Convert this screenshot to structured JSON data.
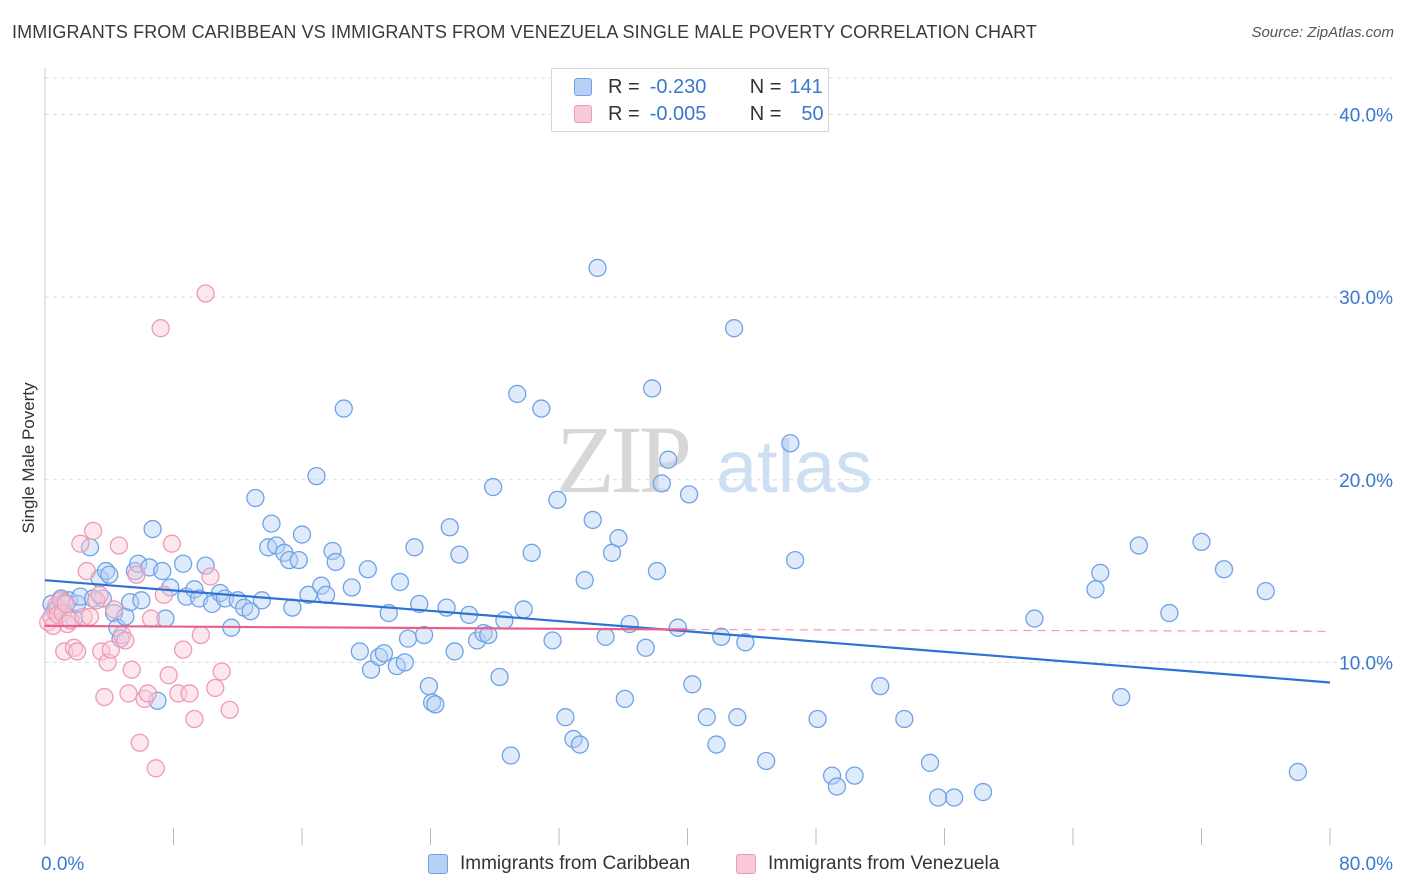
{
  "title": "IMMIGRANTS FROM CARIBBEAN VS IMMIGRANTS FROM VENEZUELA SINGLE MALE POVERTY CORRELATION CHART",
  "source": "Source: ZipAtlas.com",
  "watermark": {
    "zip": "ZIP",
    "atlas": "atlas"
  },
  "colors": {
    "caribbean": "#6fa3e8",
    "caribbean_fill": "#b7d0f3",
    "caribbean_line": "#2e72d2",
    "venezuela": "#ef9ab6",
    "venezuela_fill": "#f8c9d8",
    "venezuela_line": "#e8608c",
    "axis_text": "#3a78d0",
    "grid": "#dcdcdc"
  },
  "legend": {
    "caribbean": {
      "r_label": "R =",
      "r_value": "-0.230",
      "n_label": "N =",
      "n_value": "141"
    },
    "venezuela": {
      "r_label": "R =",
      "r_value": "-0.005",
      "n_label": "N =",
      "n_value": "50"
    }
  },
  "bottom_legend": {
    "caribbean": "Immigrants from Caribbean",
    "venezuela": "Immigrants from Venezuela"
  },
  "chart_data": {
    "type": "scatter",
    "title": "IMMIGRANTS FROM CARIBBEAN VS IMMIGRANTS FROM VENEZUELA SINGLE MALE POVERTY CORRELATION CHART",
    "xlabel": "",
    "ylabel": "Single Male Poverty",
    "xlim": [
      0,
      80
    ],
    "ylim": [
      0,
      42
    ],
    "x_tick_labels": [
      "0.0%",
      "80.0%"
    ],
    "y_ticks": [
      10,
      20,
      30,
      40
    ],
    "y_tick_labels": [
      "10.0%",
      "20.0%",
      "30.0%",
      "40.0%"
    ],
    "grid": true,
    "legend_position": "top-center",
    "series": [
      {
        "name": "Immigrants from Caribbean",
        "trend": {
          "x": [
            0,
            80
          ],
          "y": [
            14.5,
            8.9
          ]
        },
        "points": [
          [
            0.4,
            13.2
          ],
          [
            0.6,
            12.8
          ],
          [
            0.8,
            13.0
          ],
          [
            1.0,
            13.5
          ],
          [
            1.2,
            13.3
          ],
          [
            1.5,
            13.4
          ],
          [
            1.8,
            12.4
          ],
          [
            2.0,
            13.2
          ],
          [
            2.2,
            13.6
          ],
          [
            2.8,
            16.3
          ],
          [
            3.0,
            13.5
          ],
          [
            3.4,
            14.6
          ],
          [
            3.6,
            13.5
          ],
          [
            3.8,
            15.0
          ],
          [
            4.0,
            14.8
          ],
          [
            4.3,
            12.7
          ],
          [
            4.5,
            11.9
          ],
          [
            4.7,
            11.3
          ],
          [
            5.0,
            12.5
          ],
          [
            5.3,
            13.3
          ],
          [
            5.6,
            15.0
          ],
          [
            5.8,
            15.4
          ],
          [
            6.0,
            13.4
          ],
          [
            6.5,
            15.2
          ],
          [
            6.7,
            17.3
          ],
          [
            7.0,
            7.9
          ],
          [
            7.3,
            15.0
          ],
          [
            7.5,
            12.4
          ],
          [
            7.8,
            14.1
          ],
          [
            8.6,
            15.4
          ],
          [
            8.8,
            13.6
          ],
          [
            9.3,
            14.0
          ],
          [
            9.6,
            13.5
          ],
          [
            10.0,
            15.3
          ],
          [
            10.4,
            13.2
          ],
          [
            10.9,
            13.8
          ],
          [
            11.2,
            13.5
          ],
          [
            11.6,
            11.9
          ],
          [
            12.0,
            13.4
          ],
          [
            12.4,
            13.0
          ],
          [
            12.8,
            12.8
          ],
          [
            13.1,
            19.0
          ],
          [
            13.5,
            13.4
          ],
          [
            13.9,
            16.3
          ],
          [
            14.1,
            17.6
          ],
          [
            14.4,
            16.4
          ],
          [
            14.9,
            16.0
          ],
          [
            15.2,
            15.6
          ],
          [
            15.4,
            13.0
          ],
          [
            15.8,
            15.6
          ],
          [
            16.0,
            17.0
          ],
          [
            16.4,
            13.7
          ],
          [
            16.9,
            20.2
          ],
          [
            17.2,
            14.2
          ],
          [
            17.5,
            13.7
          ],
          [
            17.9,
            16.1
          ],
          [
            18.1,
            15.5
          ],
          [
            18.6,
            23.9
          ],
          [
            19.1,
            14.1
          ],
          [
            19.6,
            10.6
          ],
          [
            20.1,
            15.1
          ],
          [
            20.3,
            9.6
          ],
          [
            20.8,
            10.3
          ],
          [
            21.1,
            10.5
          ],
          [
            21.4,
            12.7
          ],
          [
            21.9,
            9.8
          ],
          [
            22.1,
            14.4
          ],
          [
            22.4,
            10.0
          ],
          [
            22.6,
            11.3
          ],
          [
            23.0,
            16.3
          ],
          [
            23.3,
            13.2
          ],
          [
            23.6,
            11.5
          ],
          [
            23.9,
            8.7
          ],
          [
            24.1,
            7.8
          ],
          [
            24.3,
            7.7
          ],
          [
            25.0,
            13.0
          ],
          [
            25.2,
            17.4
          ],
          [
            25.5,
            10.6
          ],
          [
            25.8,
            15.9
          ],
          [
            26.4,
            12.6
          ],
          [
            26.9,
            11.2
          ],
          [
            27.3,
            11.6
          ],
          [
            27.6,
            11.5
          ],
          [
            27.9,
            19.6
          ],
          [
            28.3,
            9.2
          ],
          [
            28.6,
            12.3
          ],
          [
            29.0,
            4.9
          ],
          [
            29.4,
            24.7
          ],
          [
            29.8,
            12.9
          ],
          [
            30.3,
            16.0
          ],
          [
            30.9,
            23.9
          ],
          [
            31.6,
            11.2
          ],
          [
            31.9,
            18.9
          ],
          [
            32.4,
            7.0
          ],
          [
            32.9,
            5.8
          ],
          [
            33.3,
            5.5
          ],
          [
            33.6,
            14.5
          ],
          [
            34.1,
            17.8
          ],
          [
            34.4,
            31.6
          ],
          [
            34.9,
            11.4
          ],
          [
            35.3,
            16.0
          ],
          [
            35.7,
            16.8
          ],
          [
            36.1,
            8.0
          ],
          [
            36.4,
            12.1
          ],
          [
            37.4,
            10.8
          ],
          [
            37.8,
            25.0
          ],
          [
            38.1,
            15.0
          ],
          [
            38.4,
            19.8
          ],
          [
            38.8,
            21.1
          ],
          [
            39.4,
            11.9
          ],
          [
            40.1,
            19.2
          ],
          [
            40.3,
            8.8
          ],
          [
            41.2,
            7.0
          ],
          [
            41.8,
            5.5
          ],
          [
            42.1,
            11.4
          ],
          [
            42.9,
            28.3
          ],
          [
            43.1,
            7.0
          ],
          [
            43.6,
            11.1
          ],
          [
            44.9,
            4.6
          ],
          [
            46.4,
            22.0
          ],
          [
            46.7,
            15.6
          ],
          [
            48.1,
            6.9
          ],
          [
            49.0,
            3.8
          ],
          [
            49.3,
            3.2
          ],
          [
            50.4,
            3.8
          ],
          [
            52.0,
            8.7
          ],
          [
            53.5,
            6.9
          ],
          [
            55.1,
            4.5
          ],
          [
            55.6,
            2.6
          ],
          [
            56.6,
            2.6
          ],
          [
            58.4,
            2.9
          ],
          [
            61.6,
            12.4
          ],
          [
            65.4,
            14.0
          ],
          [
            65.7,
            14.9
          ],
          [
            68.1,
            16.4
          ],
          [
            72.0,
            16.6
          ],
          [
            76.0,
            13.9
          ],
          [
            73.4,
            15.1
          ],
          [
            70.0,
            12.7
          ],
          [
            67.0,
            8.1
          ],
          [
            78.0,
            4.0
          ]
        ]
      },
      {
        "name": "Immigrants from Venezuela",
        "trend": {
          "x": [
            0,
            40
          ],
          "y": [
            12.0,
            11.8
          ]
        },
        "trend_dashed": {
          "x": [
            40,
            80
          ],
          "y": [
            11.8,
            11.7
          ]
        },
        "points": [
          [
            0.2,
            12.2
          ],
          [
            0.4,
            12.5
          ],
          [
            0.5,
            12.0
          ],
          [
            0.7,
            13.1
          ],
          [
            0.8,
            12.6
          ],
          [
            1.0,
            13.4
          ],
          [
            1.1,
            12.7
          ],
          [
            1.2,
            10.6
          ],
          [
            1.3,
            13.2
          ],
          [
            1.4,
            12.1
          ],
          [
            1.6,
            12.3
          ],
          [
            1.8,
            10.8
          ],
          [
            2.0,
            10.6
          ],
          [
            2.2,
            16.5
          ],
          [
            2.4,
            12.5
          ],
          [
            2.6,
            15.0
          ],
          [
            2.8,
            12.5
          ],
          [
            3.0,
            17.2
          ],
          [
            3.2,
            13.4
          ],
          [
            3.4,
            13.7
          ],
          [
            3.5,
            10.6
          ],
          [
            3.7,
            8.1
          ],
          [
            3.9,
            10.0
          ],
          [
            4.1,
            10.7
          ],
          [
            4.3,
            12.9
          ],
          [
            4.6,
            16.4
          ],
          [
            4.8,
            11.5
          ],
          [
            5.0,
            11.2
          ],
          [
            5.2,
            8.3
          ],
          [
            5.4,
            9.6
          ],
          [
            5.7,
            14.8
          ],
          [
            5.9,
            5.6
          ],
          [
            6.2,
            8.0
          ],
          [
            6.4,
            8.3
          ],
          [
            6.6,
            12.4
          ],
          [
            6.9,
            4.2
          ],
          [
            7.2,
            28.3
          ],
          [
            7.4,
            13.7
          ],
          [
            7.7,
            9.3
          ],
          [
            7.9,
            16.5
          ],
          [
            8.3,
            8.3
          ],
          [
            8.6,
            10.7
          ],
          [
            9.0,
            8.3
          ],
          [
            9.3,
            6.9
          ],
          [
            9.7,
            11.5
          ],
          [
            10.0,
            30.2
          ],
          [
            10.3,
            14.7
          ],
          [
            10.6,
            8.6
          ],
          [
            11.0,
            9.5
          ],
          [
            11.5,
            7.4
          ]
        ]
      }
    ]
  }
}
